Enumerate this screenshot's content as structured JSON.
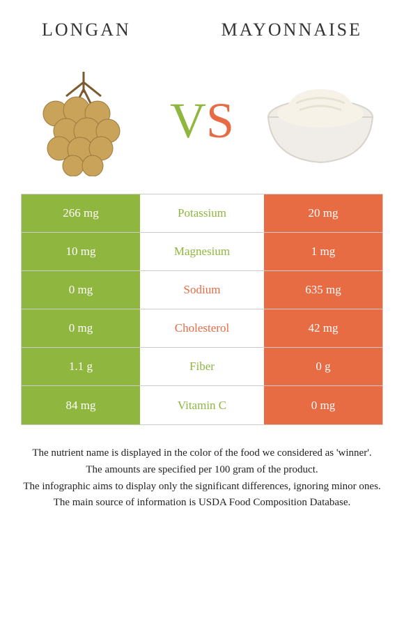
{
  "title_left": "LONGAN",
  "title_right": "MAYONNAISE",
  "vs_v": "V",
  "vs_s": "S",
  "colors": {
    "left": "#8fb63e",
    "right": "#e76b43",
    "background": "#ffffff",
    "border": "#cccccc",
    "text": "#333333"
  },
  "rows": [
    {
      "left": "266 mg",
      "name": "Potassium",
      "right": "20 mg",
      "winner": "left"
    },
    {
      "left": "10 mg",
      "name": "Magnesium",
      "right": "1 mg",
      "winner": "left"
    },
    {
      "left": "0 mg",
      "name": "Sodium",
      "right": "635 mg",
      "winner": "right"
    },
    {
      "left": "0 mg",
      "name": "Cholesterol",
      "right": "42 mg",
      "winner": "right"
    },
    {
      "left": "1.1 g",
      "name": "Fiber",
      "right": "0 g",
      "winner": "left"
    },
    {
      "left": "84 mg",
      "name": "Vitamin C",
      "right": "0 mg",
      "winner": "left"
    }
  ],
  "footer": {
    "l1": "The nutrient name is displayed in the color of the food we considered as 'winner'.",
    "l2": "The amounts are specified per 100 gram of the product.",
    "l3": "The infographic aims to display only the significant differences, ignoring minor ones.",
    "l4": "The main source of information is USDA Food Composition Database."
  }
}
